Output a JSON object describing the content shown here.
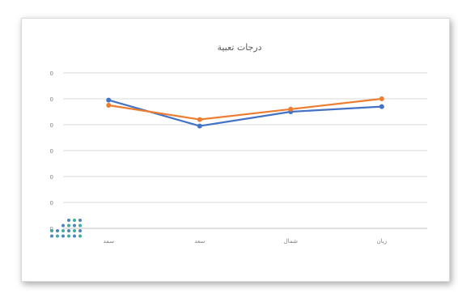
{
  "chart_data": {
    "type": "line",
    "title": "درجات تعبية",
    "categories": [
      "سمد",
      "سعد",
      "شمال",
      "زيان"
    ],
    "y_tick_labels": [
      "0",
      "0",
      "0",
      "0",
      "0",
      "0",
      "0"
    ],
    "ylim": [
      0,
      6
    ],
    "series": [
      {
        "values": [
          4.95,
          3.95,
          4.5,
          4.7
        ],
        "color": "#4472c4"
      },
      {
        "values": [
          4.75,
          4.2,
          4.6,
          5.0
        ],
        "color": "#ed7d31"
      }
    ],
    "grid": true,
    "legend": "none"
  },
  "logo": {
    "icon": "dot-matrix-logo-icon",
    "colors": [
      "#1f9e8c",
      "#2b6fb5"
    ]
  }
}
